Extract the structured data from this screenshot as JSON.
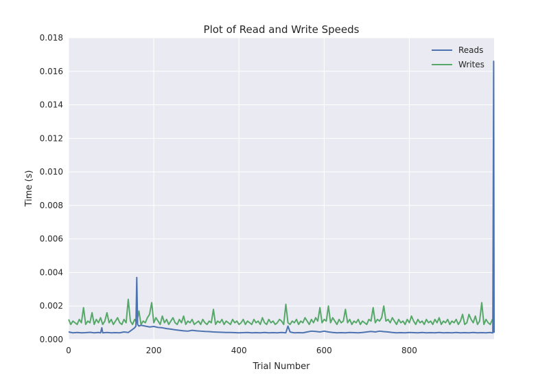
{
  "chart_data": {
    "type": "line",
    "title": "Plot of Read and Write Speeds",
    "xlabel": "Trial Number",
    "ylabel": "Time (s)",
    "xlim": [
      0,
      999
    ],
    "ylim": [
      0.0,
      0.018
    ],
    "xticks": [
      0,
      200,
      400,
      600,
      800
    ],
    "xtick_labels": [
      "0",
      "200",
      "400",
      "600",
      "800"
    ],
    "yticks": [
      0.0,
      0.002,
      0.004,
      0.006,
      0.008,
      0.01,
      0.012,
      0.014,
      0.016,
      0.018
    ],
    "ytick_labels": [
      "0.000",
      "0.002",
      "0.004",
      "0.006",
      "0.008",
      "0.010",
      "0.012",
      "0.014",
      "0.016",
      "0.018"
    ],
    "grid": true,
    "legend": {
      "position": "top-right",
      "entries": [
        "Reads",
        "Writes"
      ]
    },
    "colors": {
      "Reads": "#4c72b0",
      "Writes": "#55a868",
      "background": "#eaeaf2",
      "grid": "#ffffff"
    },
    "series": [
      {
        "name": "Reads",
        "x": [
          0,
          10,
          20,
          30,
          40,
          50,
          60,
          70,
          75,
          78,
          80,
          90,
          100,
          110,
          120,
          130,
          140,
          150,
          155,
          158,
          160,
          162,
          165,
          170,
          180,
          190,
          200,
          210,
          220,
          230,
          240,
          250,
          260,
          270,
          280,
          290,
          300,
          310,
          320,
          330,
          340,
          350,
          360,
          370,
          380,
          390,
          400,
          410,
          420,
          430,
          440,
          450,
          460,
          470,
          480,
          490,
          500,
          510,
          515,
          520,
          525,
          530,
          540,
          550,
          560,
          570,
          580,
          590,
          600,
          610,
          620,
          630,
          640,
          650,
          660,
          670,
          680,
          690,
          700,
          710,
          720,
          730,
          740,
          750,
          760,
          770,
          780,
          790,
          800,
          810,
          820,
          830,
          840,
          850,
          860,
          870,
          880,
          890,
          900,
          910,
          920,
          930,
          940,
          950,
          960,
          970,
          980,
          990,
          994,
          996,
          998,
          999
        ],
        "values": [
          0.00045,
          0.0004,
          0.00042,
          0.0004,
          0.00041,
          0.00043,
          0.0004,
          0.00042,
          0.0004,
          0.0007,
          0.0004,
          0.00042,
          0.0004,
          0.00041,
          0.0004,
          0.00045,
          0.00042,
          0.0006,
          0.0007,
          0.0008,
          0.0037,
          0.0009,
          0.0008,
          0.00085,
          0.0008,
          0.00075,
          0.00078,
          0.00072,
          0.0007,
          0.00065,
          0.00062,
          0.00058,
          0.00055,
          0.00052,
          0.0005,
          0.00055,
          0.00052,
          0.0005,
          0.00048,
          0.00047,
          0.00045,
          0.00044,
          0.00043,
          0.00042,
          0.00042,
          0.00041,
          0.0004,
          0.00041,
          0.00042,
          0.0004,
          0.00041,
          0.0004,
          0.00042,
          0.0004,
          0.00041,
          0.0004,
          0.00042,
          0.0004,
          0.0008,
          0.00045,
          0.00042,
          0.0004,
          0.00041,
          0.0004,
          0.00045,
          0.0005,
          0.00048,
          0.00045,
          0.0005,
          0.00045,
          0.00042,
          0.0004,
          0.00041,
          0.0004,
          0.00042,
          0.00041,
          0.0004,
          0.00042,
          0.00045,
          0.00048,
          0.00045,
          0.0005,
          0.00047,
          0.00045,
          0.00042,
          0.0004,
          0.00041,
          0.0004,
          0.00042,
          0.00041,
          0.0004,
          0.00042,
          0.0004,
          0.00041,
          0.0004,
          0.00042,
          0.0004,
          0.00041,
          0.0004,
          0.00042,
          0.0004,
          0.00041,
          0.0004,
          0.00042,
          0.0004,
          0.00041,
          0.0004,
          0.00042,
          0.0004,
          0.0004,
          0.0166,
          0.0004
        ]
      },
      {
        "name": "Writes",
        "x": [
          0,
          5,
          10,
          15,
          20,
          25,
          30,
          35,
          40,
          45,
          50,
          55,
          60,
          65,
          70,
          75,
          80,
          85,
          90,
          95,
          100,
          105,
          110,
          115,
          120,
          125,
          130,
          135,
          140,
          145,
          150,
          155,
          160,
          165,
          170,
          175,
          180,
          185,
          190,
          195,
          200,
          205,
          210,
          215,
          220,
          225,
          230,
          235,
          240,
          245,
          250,
          255,
          260,
          265,
          270,
          275,
          280,
          285,
          290,
          295,
          300,
          305,
          310,
          315,
          320,
          325,
          330,
          335,
          340,
          345,
          350,
          355,
          360,
          365,
          370,
          375,
          380,
          385,
          390,
          395,
          400,
          405,
          410,
          415,
          420,
          425,
          430,
          435,
          440,
          445,
          450,
          455,
          460,
          465,
          470,
          475,
          480,
          485,
          490,
          495,
          500,
          505,
          510,
          515,
          520,
          525,
          530,
          535,
          540,
          545,
          550,
          555,
          560,
          565,
          570,
          575,
          580,
          585,
          590,
          595,
          600,
          605,
          610,
          615,
          620,
          625,
          630,
          635,
          640,
          645,
          650,
          655,
          660,
          665,
          670,
          675,
          680,
          685,
          690,
          695,
          700,
          705,
          710,
          715,
          720,
          725,
          730,
          735,
          740,
          745,
          750,
          755,
          760,
          765,
          770,
          775,
          780,
          785,
          790,
          795,
          800,
          805,
          810,
          815,
          820,
          825,
          830,
          835,
          840,
          845,
          850,
          855,
          860,
          865,
          870,
          875,
          880,
          885,
          890,
          895,
          900,
          905,
          910,
          915,
          920,
          925,
          930,
          935,
          940,
          945,
          950,
          955,
          960,
          965,
          970,
          975,
          980,
          985,
          990,
          995,
          999
        ],
        "values": [
          0.0012,
          0.0009,
          0.0011,
          0.001,
          0.0009,
          0.0012,
          0.001,
          0.0019,
          0.0009,
          0.0011,
          0.001,
          0.0016,
          0.0009,
          0.0012,
          0.001,
          0.0013,
          0.0009,
          0.0011,
          0.0016,
          0.001,
          0.0012,
          0.0009,
          0.0011,
          0.0013,
          0.001,
          0.0009,
          0.0012,
          0.001,
          0.0024,
          0.0011,
          0.0009,
          0.0012,
          0.001,
          0.0017,
          0.0009,
          0.0011,
          0.001,
          0.0013,
          0.0015,
          0.0022,
          0.001,
          0.0013,
          0.0011,
          0.0009,
          0.0014,
          0.001,
          0.0012,
          0.0009,
          0.0011,
          0.0013,
          0.001,
          0.0009,
          0.0012,
          0.001,
          0.0014,
          0.0009,
          0.0011,
          0.001,
          0.0012,
          0.0009,
          0.001,
          0.0011,
          0.0009,
          0.0012,
          0.001,
          0.0009,
          0.0011,
          0.001,
          0.0018,
          0.0009,
          0.0011,
          0.001,
          0.0012,
          0.0009,
          0.0011,
          0.001,
          0.0009,
          0.0012,
          0.001,
          0.0011,
          0.0009,
          0.001,
          0.0012,
          0.0009,
          0.0011,
          0.001,
          0.0009,
          0.0012,
          0.001,
          0.0011,
          0.0009,
          0.0013,
          0.001,
          0.0009,
          0.0012,
          0.001,
          0.0011,
          0.0009,
          0.001,
          0.0012,
          0.0011,
          0.0009,
          0.0021,
          0.001,
          0.0009,
          0.0011,
          0.001,
          0.0012,
          0.0009,
          0.0011,
          0.001,
          0.0013,
          0.0011,
          0.0009,
          0.0012,
          0.001,
          0.0013,
          0.0011,
          0.0019,
          0.001,
          0.0012,
          0.0011,
          0.002,
          0.001,
          0.0013,
          0.0011,
          0.0009,
          0.0012,
          0.001,
          0.0011,
          0.0018,
          0.001,
          0.0012,
          0.0009,
          0.0011,
          0.001,
          0.0012,
          0.0009,
          0.0011,
          0.001,
          0.0009,
          0.0012,
          0.0011,
          0.0019,
          0.001,
          0.0012,
          0.0011,
          0.0013,
          0.002,
          0.0011,
          0.0012,
          0.001,
          0.0013,
          0.0011,
          0.0009,
          0.0012,
          0.001,
          0.0011,
          0.0009,
          0.0012,
          0.001,
          0.0014,
          0.0011,
          0.0009,
          0.0012,
          0.001,
          0.0011,
          0.0009,
          0.0012,
          0.001,
          0.0011,
          0.0009,
          0.0012,
          0.001,
          0.0013,
          0.0009,
          0.0011,
          0.001,
          0.0012,
          0.0009,
          0.0011,
          0.001,
          0.0012,
          0.0009,
          0.0011,
          0.0015,
          0.0009,
          0.001,
          0.0015,
          0.0012,
          0.001,
          0.0014,
          0.0009,
          0.0011,
          0.0022,
          0.0009,
          0.0012,
          0.001,
          0.0009,
          0.0012,
          0.0009
        ]
      }
    ]
  }
}
